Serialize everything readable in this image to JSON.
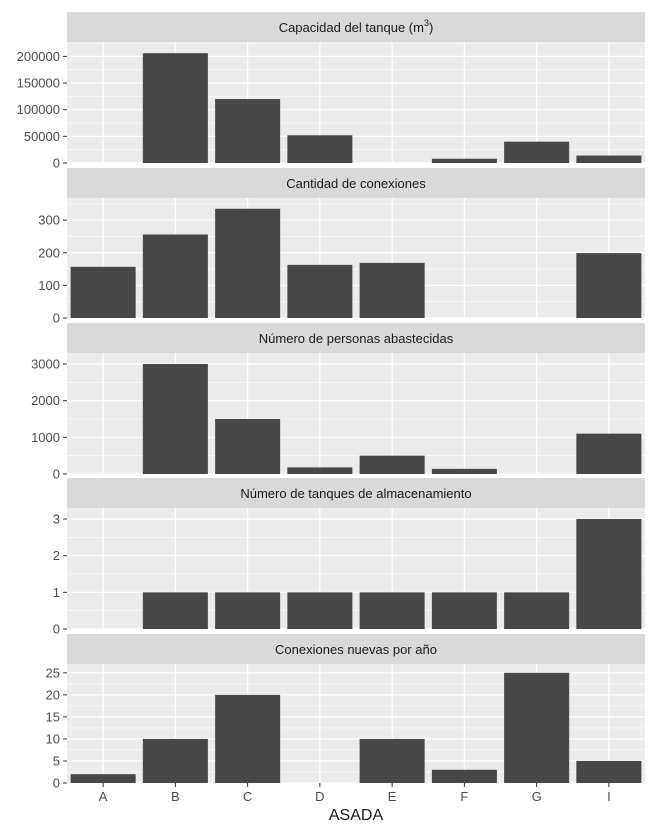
{
  "chart_data": {
    "type": "bar",
    "layout": "facets stacked vertically, shared x axis",
    "grid": true,
    "xlabel": "ASADA",
    "categories": [
      "A",
      "B",
      "C",
      "D",
      "E",
      "F",
      "G",
      "I"
    ],
    "colors": {
      "bar": "#474747",
      "panel": "#ebebeb",
      "strip": "#d9d9d9",
      "grid": "#ffffff",
      "text": "#1a1a1a",
      "axis_text": "#4d4d4d"
    },
    "facets": [
      {
        "title": "Capacidad del tanque (m",
        "title_superscript": "3",
        "title_suffix": ")",
        "ylim": [
          0,
          227000
        ],
        "yticks": [
          0,
          50000,
          100000,
          150000,
          200000
        ],
        "ytick_labels": [
          "0",
          "50000",
          "100000",
          "150000",
          "200000"
        ],
        "values": [
          0,
          206000,
          120000,
          52000,
          0,
          8000,
          40000,
          14000
        ]
      },
      {
        "title": "Cantidad de conexiones",
        "ylim": [
          0,
          368
        ],
        "yticks": [
          0,
          100,
          200,
          300
        ],
        "ytick_labels": [
          "0",
          "100",
          "200",
          "300"
        ],
        "values": [
          157,
          256,
          335,
          163,
          169,
          0,
          0,
          199
        ]
      },
      {
        "title": "Número de personas abastecidas",
        "ylim": [
          0,
          3300
        ],
        "yticks": [
          0,
          1000,
          2000,
          3000
        ],
        "ytick_labels": [
          "0",
          "1000",
          "2000",
          "3000"
        ],
        "values": [
          0,
          3000,
          1500,
          180,
          500,
          140,
          0,
          1100
        ]
      },
      {
        "title": "Número de tanques de almacenamiento",
        "ylim": [
          0,
          3.3
        ],
        "yticks": [
          0,
          1,
          2,
          3
        ],
        "ytick_labels": [
          "0",
          "1",
          "2",
          "3"
        ],
        "values": [
          0,
          1,
          1,
          1,
          1,
          1,
          1,
          3
        ]
      },
      {
        "title": "Conexiones nuevas por año",
        "ylim": [
          0,
          27
        ],
        "yticks": [
          0,
          5,
          10,
          15,
          20,
          25
        ],
        "ytick_labels": [
          "0",
          "5",
          "10",
          "15",
          "20",
          "25"
        ],
        "values": [
          2,
          10,
          20,
          0,
          10,
          3,
          25,
          5
        ]
      }
    ]
  }
}
